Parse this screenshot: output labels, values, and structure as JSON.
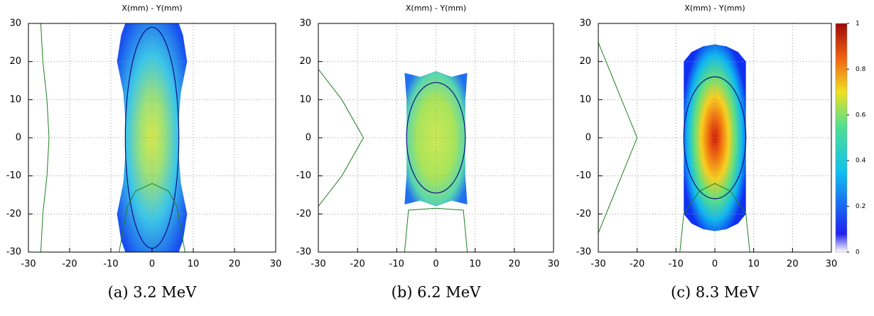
{
  "chart_data": [
    {
      "type": "heatmap",
      "title": "X(mm) - Y(mm)",
      "caption": "(a) 3.2 MeV",
      "xlim": [
        -30,
        30
      ],
      "ylim": [
        -30,
        30
      ],
      "xticks": [
        -30,
        -20,
        -10,
        0,
        10,
        20,
        30
      ],
      "yticks": [
        -30,
        -20,
        -10,
        0,
        10,
        20,
        30
      ],
      "grid": true
    },
    {
      "type": "heatmap",
      "title": "X(mm) - Y(mm)",
      "caption": "(b) 6.2 MeV",
      "xlim": [
        -30,
        30
      ],
      "ylim": [
        -30,
        30
      ],
      "xticks": [
        -30,
        -20,
        -10,
        0,
        10,
        20,
        30
      ],
      "yticks": [
        -30,
        -20,
        -10,
        0,
        10,
        20,
        30
      ],
      "grid": true
    },
    {
      "type": "heatmap",
      "title": "X(mm) - Y(mm)",
      "caption": "(c) 8.3 MeV",
      "xlim": [
        -30,
        30
      ],
      "ylim": [
        -30,
        30
      ],
      "xticks": [
        -30,
        -20,
        -10,
        0,
        10,
        20,
        30
      ],
      "yticks": [
        -30,
        -20,
        -10,
        0,
        10,
        20,
        30
      ],
      "grid": true,
      "colorbar": {
        "lim": [
          0,
          1
        ],
        "ticks": [
          0,
          0.2,
          0.4,
          0.6,
          0.8,
          1
        ]
      }
    }
  ]
}
